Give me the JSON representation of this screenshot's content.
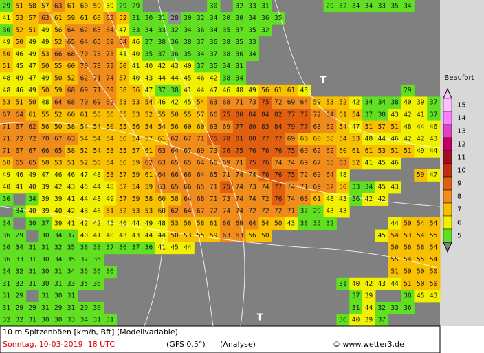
{
  "map": {
    "legend_title": "Beaufort",
    "legend": [
      {
        "label": 15,
        "color": "#ffc0ff"
      },
      {
        "label": 14,
        "color": "#ff80ff"
      },
      {
        "label": 13,
        "color": "#e040c0"
      },
      {
        "label": 12,
        "color": "#c00060"
      },
      {
        "label": 11,
        "color": "#a01020"
      },
      {
        "label": 10,
        "color": "#c03010"
      },
      {
        "label": 9,
        "color": "#e06010"
      },
      {
        "label": 8,
        "color": "#f08c1c"
      },
      {
        "label": 7,
        "color": "#f8c000"
      },
      {
        "label": 6,
        "color": "#f0f000"
      },
      {
        "label": 5,
        "color": "#60e020"
      }
    ],
    "markers": [
      "T",
      "T"
    ],
    "grid": [
      [
        29,
        51,
        58,
        57,
        63,
        61,
        60,
        59,
        39,
        29,
        29,
        null,
        null,
        null,
        null,
        null,
        30,
        null,
        32,
        33,
        31,
        null,
        null,
        null,
        null,
        29,
        32,
        34,
        34,
        33,
        35,
        34,
        null,
        null
      ],
      [
        41,
        53,
        57,
        63,
        61,
        59,
        61,
        60,
        63,
        52,
        31,
        30,
        31,
        28,
        30,
        32,
        34,
        30,
        30,
        34,
        36,
        35,
        null,
        null,
        null,
        null,
        null,
        null,
        null,
        null,
        null,
        null,
        null,
        null
      ],
      [
        30,
        52,
        51,
        49,
        56,
        64,
        62,
        63,
        64,
        47,
        33,
        34,
        33,
        32,
        34,
        36,
        34,
        35,
        37,
        35,
        32,
        null,
        null,
        null,
        null,
        null,
        null,
        null,
        null,
        null,
        null,
        null,
        null,
        null
      ],
      [
        49,
        50,
        49,
        49,
        52,
        65,
        64,
        65,
        69,
        64,
        46,
        37,
        38,
        36,
        38,
        37,
        36,
        38,
        35,
        33,
        null,
        null,
        null,
        null,
        null,
        null,
        null,
        null,
        null,
        null,
        null,
        null,
        null,
        null
      ],
      [
        50,
        46,
        49,
        53,
        66,
        68,
        70,
        73,
        73,
        41,
        40,
        35,
        37,
        36,
        35,
        34,
        37,
        38,
        36,
        34,
        null,
        null,
        null,
        null,
        null,
        null,
        null,
        null,
        null,
        null,
        null,
        null,
        null,
        null
      ],
      [
        51,
        45,
        47,
        50,
        55,
        60,
        70,
        73,
        73,
        50,
        41,
        40,
        42,
        43,
        40,
        37,
        35,
        34,
        31,
        null,
        null,
        null,
        null,
        null,
        null,
        null,
        null,
        null,
        null,
        null,
        null,
        null,
        null,
        null
      ],
      [
        48,
        49,
        47,
        49,
        50,
        52,
        62,
        71,
        74,
        57,
        40,
        43,
        44,
        44,
        45,
        46,
        42,
        38,
        34,
        null,
        null,
        null,
        null,
        null,
        null,
        null,
        null,
        null,
        null,
        null,
        null,
        null,
        null,
        null
      ],
      [
        48,
        46,
        49,
        50,
        59,
        68,
        69,
        71,
        69,
        58,
        56,
        47,
        37,
        38,
        41,
        44,
        47,
        46,
        48,
        49,
        56,
        61,
        61,
        43,
        null,
        null,
        null,
        null,
        null,
        null,
        null,
        29,
        null,
        null
      ],
      [
        53,
        51,
        50,
        48,
        64,
        68,
        70,
        69,
        62,
        53,
        53,
        54,
        46,
        42,
        45,
        54,
        63,
        68,
        71,
        73,
        75,
        72,
        69,
        64,
        59,
        53,
        52,
        42,
        34,
        34,
        38,
        40,
        39,
        37
      ],
      [
        67,
        64,
        61,
        55,
        52,
        60,
        61,
        58,
        56,
        55,
        53,
        52,
        55,
        50,
        55,
        57,
        66,
        75,
        80,
        84,
        84,
        82,
        77,
        77,
        72,
        64,
        61,
        54,
        37,
        38,
        43,
        42,
        41,
        37
      ],
      [
        71,
        67,
        62,
        56,
        50,
        58,
        54,
        54,
        50,
        55,
        56,
        54,
        54,
        56,
        60,
        60,
        63,
        69,
        77,
        80,
        83,
        84,
        79,
        77,
        68,
        62,
        54,
        47,
        51,
        57,
        51,
        48,
        44,
        46
      ],
      [
        71,
        72,
        72,
        70,
        67,
        63,
        54,
        54,
        54,
        56,
        54,
        57,
        61,
        62,
        67,
        71,
        75,
        78,
        81,
        80,
        77,
        77,
        69,
        60,
        60,
        58,
        54,
        53,
        48,
        44,
        46,
        42,
        42,
        43
      ],
      [
        71,
        67,
        67,
        66,
        65,
        58,
        52,
        54,
        53,
        55,
        57,
        61,
        63,
        64,
        67,
        69,
        73,
        76,
        75,
        76,
        76,
        76,
        75,
        69,
        62,
        62,
        60,
        61,
        61,
        53,
        51,
        51,
        49,
        44
      ],
      [
        58,
        65,
        65,
        58,
        53,
        51,
        52,
        56,
        54,
        56,
        59,
        62,
        63,
        65,
        65,
        64,
        66,
        69,
        71,
        75,
        76,
        74,
        74,
        69,
        67,
        65,
        63,
        52,
        41,
        45,
        46,
        null,
        null,
        null
      ],
      [
        49,
        46,
        49,
        47,
        46,
        46,
        47,
        48,
        53,
        57,
        59,
        61,
        64,
        66,
        66,
        64,
        65,
        71,
        74,
        74,
        76,
        76,
        75,
        72,
        69,
        64,
        48,
        null,
        null,
        null,
        null,
        null,
        59,
        47
      ],
      [
        40,
        41,
        40,
        39,
        42,
        43,
        45,
        44,
        48,
        52,
        54,
        59,
        63,
        65,
        66,
        65,
        71,
        75,
        74,
        73,
        74,
        77,
        74,
        71,
        69,
        62,
        50,
        33,
        34,
        45,
        43,
        null,
        null,
        null
      ],
      [
        30,
        null,
        34,
        39,
        39,
        41,
        44,
        48,
        49,
        57,
        59,
        58,
        60,
        58,
        64,
        68,
        71,
        73,
        74,
        74,
        72,
        76,
        74,
        68,
        61,
        48,
        43,
        36,
        42,
        42,
        null,
        null,
        null,
        null
      ],
      [
        null,
        34,
        40,
        39,
        40,
        42,
        43,
        46,
        51,
        52,
        53,
        53,
        60,
        62,
        64,
        67,
        72,
        74,
        74,
        72,
        72,
        72,
        71,
        37,
        29,
        43,
        43,
        null,
        null,
        null,
        null,
        null,
        null,
        null
      ],
      [
        34,
        null,
        30,
        37,
        39,
        41,
        42,
        42,
        45,
        46,
        44,
        49,
        48,
        53,
        56,
        58,
        61,
        66,
        69,
        64,
        54,
        50,
        43,
        38,
        35,
        32,
        null,
        null,
        null,
        null,
        44,
        50,
        54,
        54
      ],
      [
        36,
        29,
        null,
        30,
        34,
        37,
        40,
        41,
        40,
        43,
        43,
        44,
        44,
        50,
        53,
        55,
        59,
        63,
        63,
        56,
        50,
        null,
        null,
        null,
        null,
        null,
        null,
        null,
        null,
        45,
        54,
        53,
        54,
        55
      ],
      [
        36,
        34,
        31,
        31,
        32,
        35,
        38,
        38,
        37,
        36,
        37,
        36,
        41,
        45,
        44,
        null,
        null,
        null,
        null,
        null,
        null,
        null,
        null,
        null,
        null,
        null,
        null,
        null,
        null,
        null,
        50,
        56,
        58,
        54
      ],
      [
        36,
        33,
        31,
        30,
        34,
        35,
        37,
        36,
        null,
        null,
        null,
        null,
        null,
        null,
        null,
        null,
        null,
        null,
        null,
        null,
        null,
        null,
        null,
        null,
        null,
        null,
        null,
        null,
        null,
        null,
        55,
        54,
        55,
        54
      ],
      [
        34,
        32,
        31,
        30,
        31,
        34,
        35,
        36,
        36,
        null,
        null,
        null,
        null,
        null,
        null,
        null,
        null,
        null,
        null,
        null,
        null,
        null,
        null,
        null,
        null,
        null,
        null,
        null,
        null,
        null,
        51,
        50,
        50,
        50
      ],
      [
        31,
        32,
        31,
        30,
        31,
        33,
        35,
        36,
        null,
        null,
        null,
        null,
        null,
        null,
        null,
        null,
        null,
        null,
        null,
        null,
        null,
        null,
        null,
        null,
        null,
        null,
        31,
        40,
        42,
        43,
        44,
        51,
        50,
        50
      ],
      [
        31,
        29,
        null,
        31,
        30,
        31,
        null,
        null,
        null,
        null,
        null,
        null,
        null,
        null,
        null,
        null,
        null,
        null,
        null,
        null,
        null,
        null,
        null,
        null,
        null,
        null,
        null,
        37,
        39,
        null,
        null,
        38,
        45,
        43
      ],
      [
        31,
        29,
        29,
        31,
        29,
        31,
        29,
        30,
        null,
        null,
        null,
        null,
        null,
        null,
        null,
        null,
        null,
        null,
        null,
        null,
        null,
        null,
        null,
        null,
        null,
        null,
        null,
        31,
        44,
        32,
        33,
        36,
        null,
        null
      ],
      [
        32,
        32,
        31,
        30,
        30,
        33,
        34,
        31,
        31,
        null,
        null,
        null,
        null,
        null,
        null,
        null,
        null,
        null,
        null,
        null,
        null,
        null,
        null,
        null,
        null,
        null,
        36,
        40,
        39,
        37,
        null,
        null,
        null,
        null
      ]
    ]
  },
  "footer": {
    "caption": "10 m Spitzenböen [km/h, Bft] (Modellvariable)",
    "date": "Sonntag, 10-03-2019  18 UTC",
    "model": "(GFS 0.5°)",
    "run": "(Analyse)",
    "credit": "© www.wetter3.de"
  }
}
